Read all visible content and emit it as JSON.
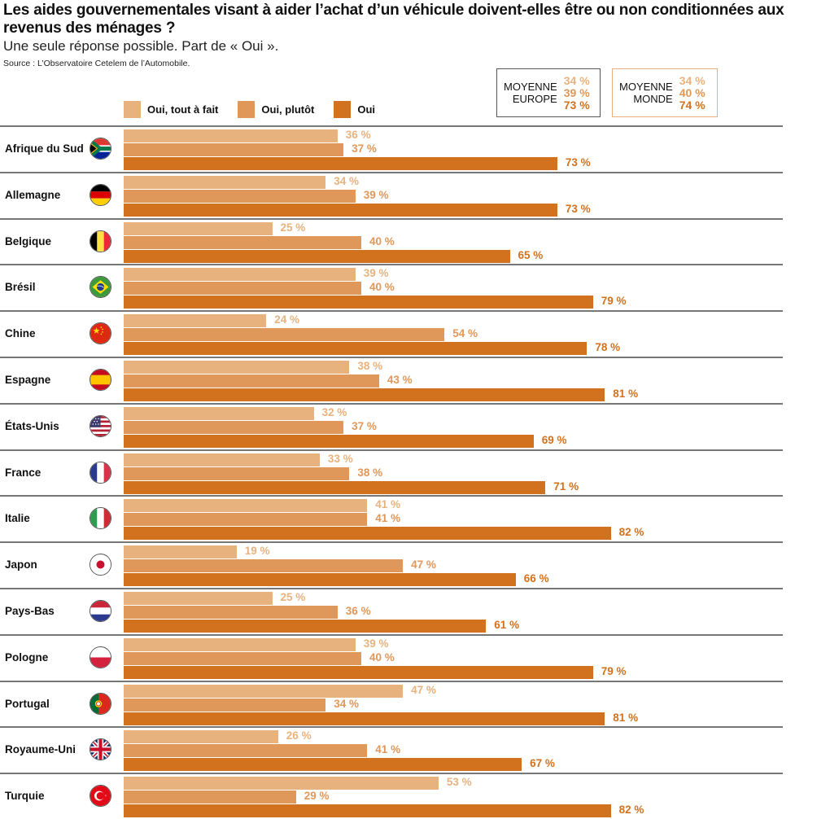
{
  "header": {
    "title": "Les aides gouvernementales visant à aider l’achat d’un véhicule doivent-elles être ou non conditionnées aux revenus des ménages ?",
    "subtitle": "Une seule réponse possible. Part de « Oui ».",
    "source": "Source : L’Observatoire Cetelem de l’Automobile."
  },
  "colors": {
    "tout_a_fait": "#e8b27e",
    "plutot": "#e0975a",
    "oui": "#d2721e",
    "europe_border": "#555555",
    "monde_border": "#e8b07a"
  },
  "averages": {
    "europe": {
      "label_line1": "MOYENNE",
      "label_line2": "EUROPE",
      "v1": "34 %",
      "v2": "39 %",
      "v3": "73 %"
    },
    "monde": {
      "label_line1": "MOYENNE",
      "label_line2": "MONDE",
      "v1": "34 %",
      "v2": "40 %",
      "v3": "74 %"
    }
  },
  "chart_data": {
    "type": "bar",
    "title": "Les aides gouvernementales visant à aider l’achat d’un véhicule doivent-elles être ou non conditionnées aux revenus des ménages ?",
    "orientation": "horizontal",
    "unit": "%",
    "xlim": [
      0,
      100
    ],
    "legend": [
      "Oui, tout à fait",
      "Oui, plutôt",
      "Oui"
    ],
    "legend_position": "top",
    "categories": [
      "Afrique du Sud",
      "Allemagne",
      "Belgique",
      "Brésil",
      "Chine",
      "Espagne",
      "États-Unis",
      "France",
      "Italie",
      "Japon",
      "Pays-Bas",
      "Pologne",
      "Portugal",
      "Royaume-Uni",
      "Turquie"
    ],
    "flags": [
      "flag-south-africa-icon",
      "flag-germany-icon",
      "flag-belgium-icon",
      "flag-brazil-icon",
      "flag-china-icon",
      "flag-spain-icon",
      "flag-usa-icon",
      "flag-france-icon",
      "flag-italy-icon",
      "flag-japan-icon",
      "flag-netherlands-icon",
      "flag-poland-icon",
      "flag-portugal-icon",
      "flag-uk-icon",
      "flag-turkey-icon"
    ],
    "series": [
      {
        "name": "Oui, tout à fait",
        "values": [
          36,
          34,
          25,
          39,
          24,
          38,
          32,
          33,
          41,
          19,
          25,
          39,
          47,
          26,
          53
        ]
      },
      {
        "name": "Oui, plutôt",
        "values": [
          37,
          39,
          40,
          40,
          54,
          43,
          37,
          38,
          41,
          47,
          36,
          40,
          34,
          41,
          29
        ]
      },
      {
        "name": "Oui",
        "values": [
          73,
          73,
          65,
          79,
          78,
          81,
          69,
          71,
          82,
          66,
          61,
          79,
          81,
          67,
          82
        ]
      }
    ]
  }
}
